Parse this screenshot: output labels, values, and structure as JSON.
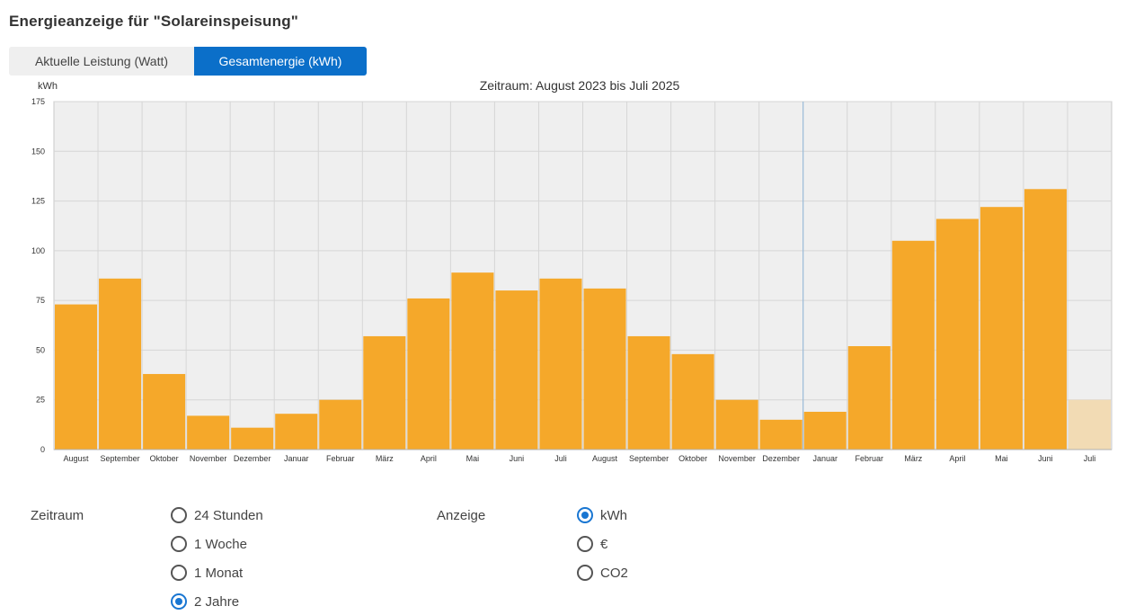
{
  "page": {
    "title": "Energieanzeige für \"Solareinspeisung\""
  },
  "tabs": [
    {
      "label": "Aktuelle Leistung (Watt)",
      "active": false
    },
    {
      "label": "Gesamtenergie (kWh)",
      "active": true
    }
  ],
  "colors": {
    "accent": "#0b6fc9",
    "bar": "#f5a82a",
    "bar_partial": "#f2dbb4",
    "plot_bg": "#efefef",
    "grid": "#d6d6d6",
    "radio_checked": "#1976d2"
  },
  "chart_data": {
    "type": "bar",
    "title": "Zeitraum: August 2023 bis Juli 2025",
    "ylabel": "kWh",
    "xlabel": "",
    "ylim": [
      0,
      175
    ],
    "yticks": [
      0,
      25,
      50,
      75,
      100,
      125,
      150,
      175
    ],
    "grid": true,
    "categories": [
      "August",
      "September",
      "Oktober",
      "November",
      "Dezember",
      "Januar",
      "Februar",
      "März",
      "April",
      "Mai",
      "Juni",
      "Juli",
      "August",
      "September",
      "Oktober",
      "November",
      "Dezember",
      "Januar",
      "Februar",
      "März",
      "April",
      "Mai",
      "Juni",
      "Juli"
    ],
    "values": [
      73,
      86,
      38,
      17,
      11,
      18,
      25,
      57,
      76,
      89,
      80,
      86,
      81,
      57,
      48,
      25,
      15,
      19,
      52,
      105,
      116,
      122,
      131,
      25
    ],
    "partial_last": true,
    "year_divider_after_index": 16
  },
  "controls": {
    "zeitraum": {
      "label": "Zeitraum",
      "options": [
        {
          "label": "24 Stunden",
          "checked": false
        },
        {
          "label": "1 Woche",
          "checked": false
        },
        {
          "label": "1 Monat",
          "checked": false
        },
        {
          "label": "2 Jahre",
          "checked": true
        }
      ]
    },
    "anzeige": {
      "label": "Anzeige",
      "options": [
        {
          "label": "kWh",
          "checked": true
        },
        {
          "label": "€",
          "checked": false
        },
        {
          "label": "CO2",
          "checked": false
        }
      ]
    }
  }
}
